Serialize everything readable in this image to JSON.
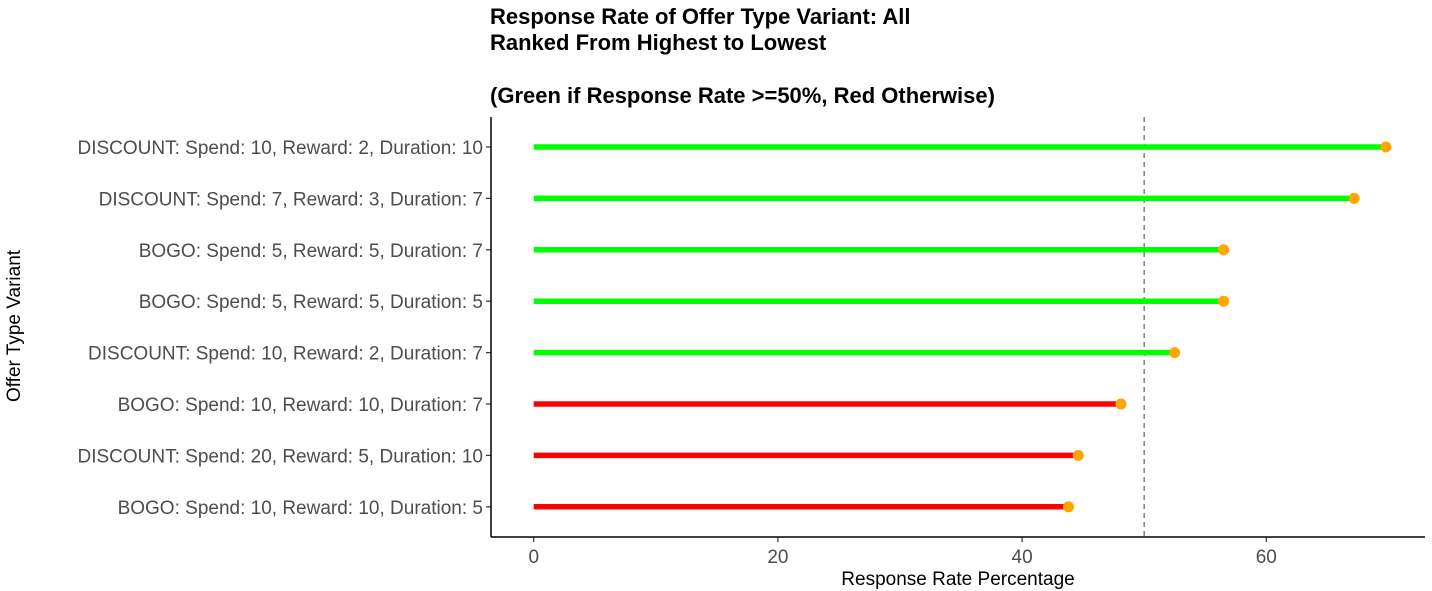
{
  "chart_data": {
    "type": "lollipop",
    "orientation": "horizontal",
    "title_lines": [
      "Response Rate of Offer Type Variant:  All",
      "Ranked From Highest to Lowest",
      "",
      "(Green if Response Rate >=50%, Red Otherwise)"
    ],
    "xlabel": "Response Rate Percentage",
    "ylabel": "Offer Type Variant",
    "xlim": [
      -3.5,
      73
    ],
    "xticks": [
      0,
      20,
      40,
      60
    ],
    "threshold": 50,
    "categories": [
      "DISCOUNT: Spend: 10, Reward: 2, Duration: 10",
      "DISCOUNT: Spend: 7, Reward: 3, Duration: 7",
      "BOGO: Spend: 5, Reward: 5, Duration: 7",
      "BOGO: Spend: 5, Reward: 5, Duration: 5",
      "DISCOUNT: Spend: 10, Reward: 2, Duration: 7",
      "BOGO: Spend: 10, Reward: 10, Duration: 7",
      "DISCOUNT: Spend: 20, Reward: 5, Duration: 10",
      "BOGO: Spend: 10, Reward: 10, Duration: 5"
    ],
    "values": [
      69.8,
      67.2,
      56.5,
      56.5,
      52.5,
      48.1,
      44.6,
      43.8
    ],
    "colors": {
      "above": "#00ff00",
      "below": "#ff0000",
      "point": "#ffa500",
      "threshold_line": "#808080",
      "axis": "#000000"
    },
    "grid": false,
    "legend": "none"
  }
}
